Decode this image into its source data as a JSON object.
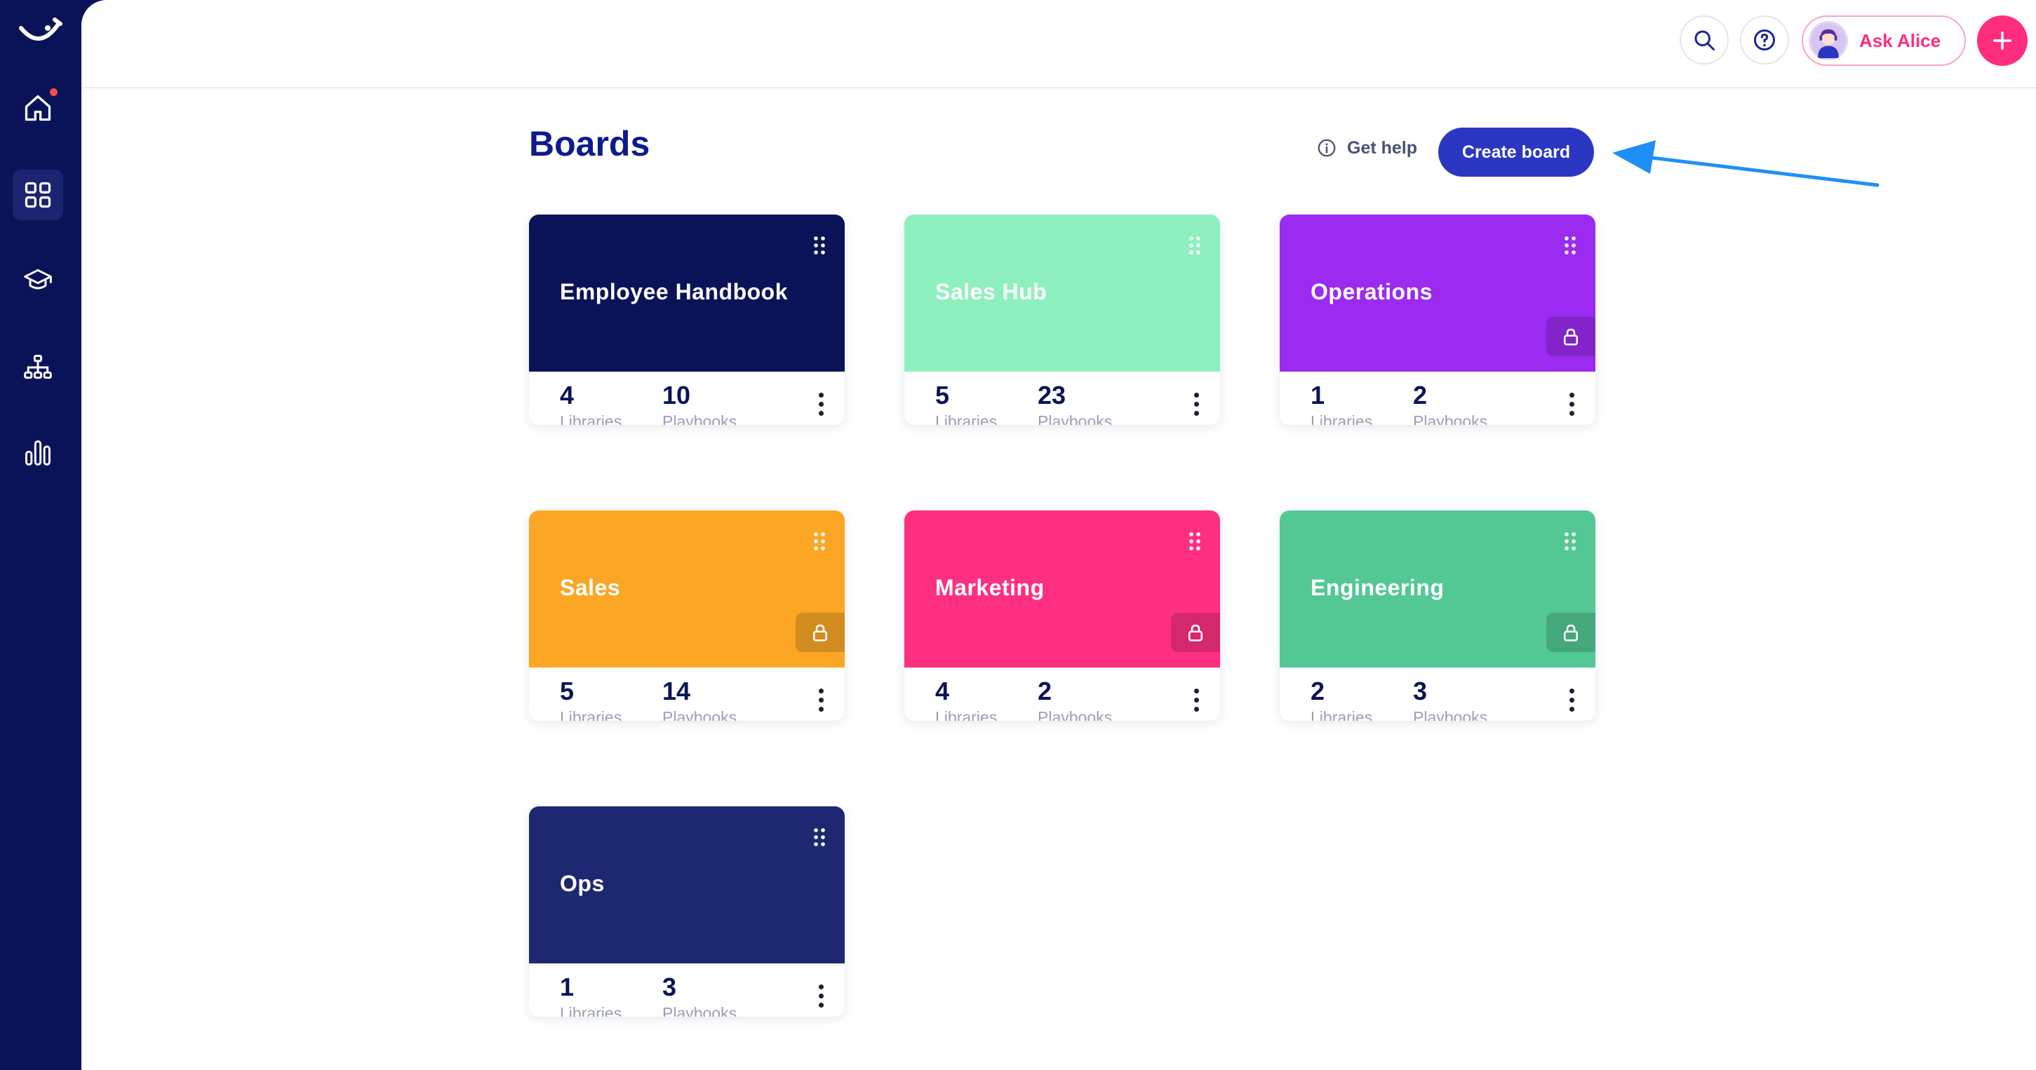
{
  "sidebar": {
    "logo_icon": "smile-logo-icon",
    "items": [
      {
        "icon": "home-icon",
        "has_notification": true,
        "active": false
      },
      {
        "icon": "grid-icon",
        "active": true
      },
      {
        "icon": "graduation-cap-icon",
        "active": false
      },
      {
        "icon": "org-chart-icon",
        "active": false
      },
      {
        "icon": "bar-chart-icon",
        "active": false
      }
    ]
  },
  "topbar": {
    "search_icon": "search-icon",
    "help_icon": "help-icon",
    "ask_label": "Ask Alice",
    "plus_icon": "plus-icon"
  },
  "page": {
    "title": "Boards",
    "get_help_label": "Get help",
    "create_board_label": "Create board"
  },
  "colors": {
    "sidebar_bg": "#0b1358",
    "primary_button": "#2b36c2",
    "accent_pink": "#ff2d7e",
    "title_blue": "#0d1a8f"
  },
  "boards": [
    {
      "title": "Employee Handbook",
      "color": "#0b1358",
      "libraries": "4",
      "playbooks": "10",
      "locked": false
    },
    {
      "title": "Sales Hub",
      "color": "#8ff0bf",
      "libraries": "5",
      "playbooks": "23",
      "locked": false
    },
    {
      "title": "Operations",
      "color": "#9b2bf0",
      "libraries": "1",
      "playbooks": "2",
      "locked": true
    },
    {
      "title": "Sales",
      "color": "#fba624",
      "libraries": "5",
      "playbooks": "14",
      "locked": true
    },
    {
      "title": "Marketing",
      "color": "#fe2f81",
      "libraries": "4",
      "playbooks": "2",
      "locked": true
    },
    {
      "title": "Engineering",
      "color": "#53c894",
      "libraries": "2",
      "playbooks": "3",
      "locked": true
    },
    {
      "title": "Ops",
      "color": "#1e2870",
      "libraries": "1",
      "playbooks": "3",
      "locked": false
    }
  ],
  "labels": {
    "libraries": "Libraries",
    "playbooks": "Playbooks"
  }
}
